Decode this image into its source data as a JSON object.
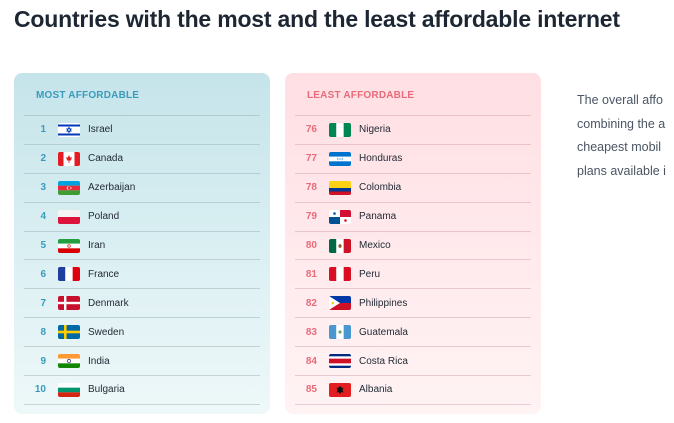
{
  "title": "Countries with the most and the least affordable internet",
  "most": {
    "header": "MOST AFFORDABLE",
    "rows": [
      {
        "rank": "1",
        "country": "Israel",
        "flag": "israel-flag-icon"
      },
      {
        "rank": "2",
        "country": "Canada",
        "flag": "canada-flag-icon"
      },
      {
        "rank": "3",
        "country": "Azerbaijan",
        "flag": "azerbaijan-flag-icon"
      },
      {
        "rank": "4",
        "country": "Poland",
        "flag": "poland-flag-icon"
      },
      {
        "rank": "5",
        "country": "Iran",
        "flag": "iran-flag-icon"
      },
      {
        "rank": "6",
        "country": "France",
        "flag": "france-flag-icon"
      },
      {
        "rank": "7",
        "country": "Denmark",
        "flag": "denmark-flag-icon"
      },
      {
        "rank": "8",
        "country": "Sweden",
        "flag": "sweden-flag-icon"
      },
      {
        "rank": "9",
        "country": "India",
        "flag": "india-flag-icon"
      },
      {
        "rank": "10",
        "country": "Bulgaria",
        "flag": "bulgaria-flag-icon"
      }
    ]
  },
  "least": {
    "header": "LEAST AFFORDABLE",
    "rows": [
      {
        "rank": "76",
        "country": "Nigeria",
        "flag": "nigeria-flag-icon"
      },
      {
        "rank": "77",
        "country": "Honduras",
        "flag": "honduras-flag-icon"
      },
      {
        "rank": "78",
        "country": "Colombia",
        "flag": "colombia-flag-icon"
      },
      {
        "rank": "79",
        "country": "Panama",
        "flag": "panama-flag-icon"
      },
      {
        "rank": "80",
        "country": "Mexico",
        "flag": "mexico-flag-icon"
      },
      {
        "rank": "81",
        "country": "Peru",
        "flag": "peru-flag-icon"
      },
      {
        "rank": "82",
        "country": "Philippines",
        "flag": "philippines-flag-icon"
      },
      {
        "rank": "83",
        "country": "Guatemala",
        "flag": "guatemala-flag-icon"
      },
      {
        "rank": "84",
        "country": "Costa Rica",
        "flag": "costa-rica-flag-icon"
      },
      {
        "rank": "85",
        "country": "Albania",
        "flag": "albania-flag-icon"
      }
    ]
  },
  "side_text": {
    "lines": [
      "The overall affo",
      "combining the a",
      "cheapest mobil",
      "plans available i"
    ]
  },
  "colors": {
    "most_accent": "#3a9bbd",
    "least_accent": "#e86b7a",
    "most_bg": "#c5e4ea",
    "least_bg": "#ffdfe3"
  }
}
